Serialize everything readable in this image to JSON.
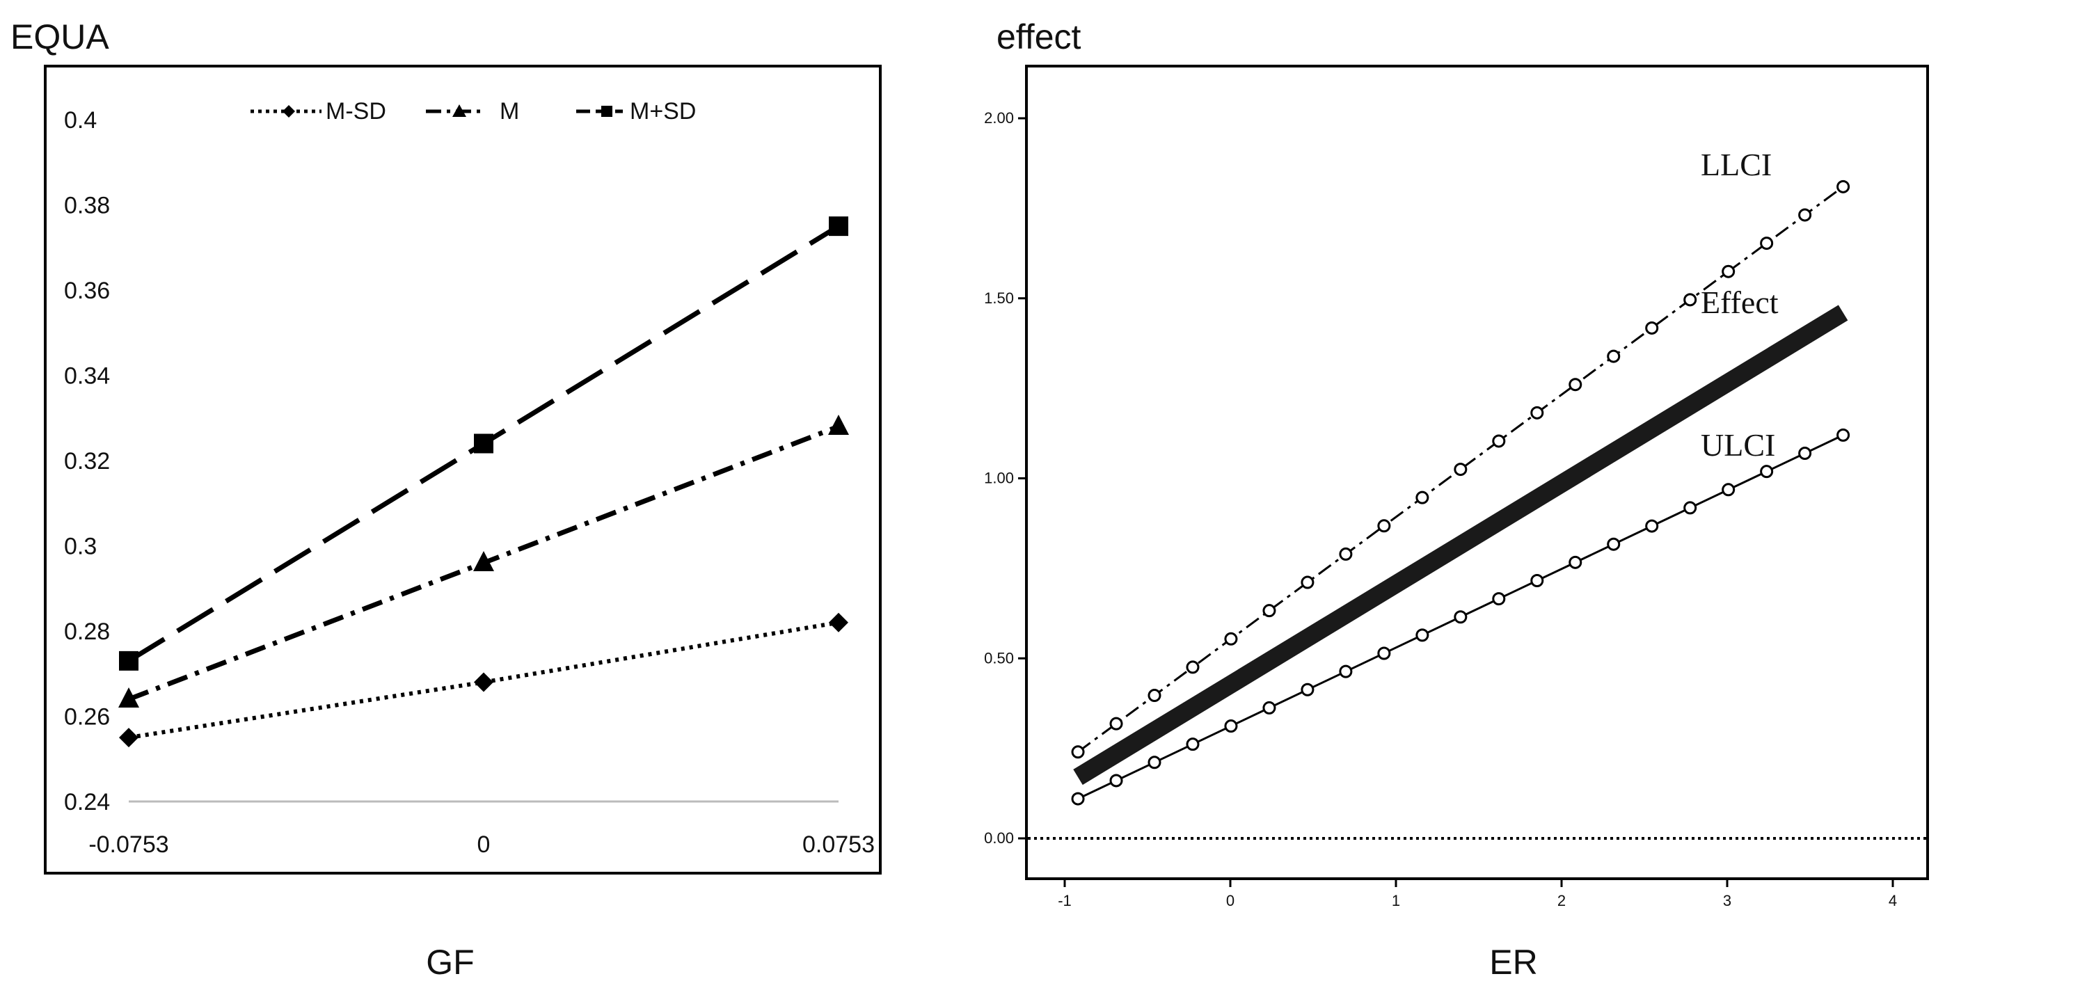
{
  "chart_data": [
    {
      "type": "line",
      "title": "",
      "ylabel": "EQUA",
      "xlabel": "GF",
      "categories": [
        "-0.0753",
        "0",
        "0.0753"
      ],
      "ylim": [
        0.24,
        0.4
      ],
      "yticks": [
        "0.4",
        "0.38",
        "0.36",
        "0.34",
        "0.32",
        "0.3",
        "0.28",
        "0.26",
        "0.24"
      ],
      "legend_position": "top",
      "series": [
        {
          "name": "M-SD",
          "marker": "diamond",
          "style": "dotted",
          "values": [
            0.255,
            0.268,
            0.282
          ]
        },
        {
          "name": "M",
          "marker": "triangle",
          "style": "dash-dot",
          "values": [
            0.264,
            0.296,
            0.328
          ]
        },
        {
          "name": "M+SD",
          "marker": "square",
          "style": "dashed",
          "values": [
            0.273,
            0.324,
            0.375
          ]
        }
      ]
    },
    {
      "type": "line",
      "title": "",
      "ylabel": "effect",
      "xlabel": "ER",
      "xlim": [
        -1.2,
        4.2
      ],
      "ylim": [
        -0.12,
        2.08
      ],
      "xticks": [
        "-1",
        "0",
        "1",
        "2",
        "3",
        "4"
      ],
      "yticks": [
        "0.00",
        "0.50",
        "1.00",
        "1.50",
        "2.00"
      ],
      "reference_line": 0,
      "series": [
        {
          "name": "LLCI",
          "style": "dash-dot",
          "marker": "open-circle",
          "x": [
            -0.92,
            3.7
          ],
          "y": [
            0.24,
            1.81
          ]
        },
        {
          "name": "Effect",
          "style": "thick-solid",
          "marker": "none",
          "x": [
            -0.92,
            3.7
          ],
          "y": [
            0.17,
            1.46
          ]
        },
        {
          "name": "ULCI",
          "style": "solid",
          "marker": "open-circle",
          "x": [
            -0.92,
            3.7
          ],
          "y": [
            0.11,
            1.12
          ]
        }
      ],
      "side_labels": [
        "LLCI",
        "Effect",
        "ULCI"
      ]
    }
  ]
}
